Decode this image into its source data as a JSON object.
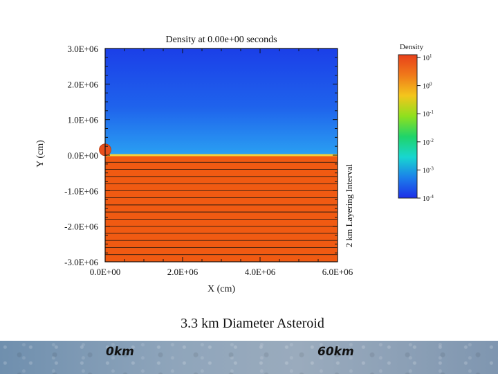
{
  "chart_data": {
    "type": "heatmap",
    "title": "Density at 0.00e+00 seconds",
    "xlabel": "X (cm)",
    "ylabel": "Y (cm)",
    "xlim": [
      0,
      6000000
    ],
    "ylim": [
      -3000000,
      3000000
    ],
    "x_ticks": [
      "0.0E+00",
      "2.0E+06",
      "4.0E+06",
      "6.0E+06"
    ],
    "x_tick_values": [
      0,
      2000000,
      4000000,
      6000000
    ],
    "y_ticks": [
      "3.0E+06",
      "2.0E+06",
      "1.0E+06",
      "0.0E+00",
      "-1.0E+06",
      "-2.0E+06",
      "-3.0E+06"
    ],
    "y_tick_values": [
      3000000,
      2000000,
      1000000,
      0,
      -1000000,
      -2000000,
      -3000000
    ],
    "surface_y": 0,
    "layer_interval_cm": 200000,
    "layer_label": "2 km Layering Interval",
    "asteroid": {
      "x": 0,
      "y": 150000,
      "diameter_cm": 330000
    },
    "colorbar": {
      "label": "Density",
      "scale": "log",
      "ticks": [
        {
          "base": "10",
          "exp": "1"
        },
        {
          "base": "10",
          "exp": "0"
        },
        {
          "base": "10",
          "exp": "-1"
        },
        {
          "base": "10",
          "exp": "-2"
        },
        {
          "base": "10",
          "exp": "-3"
        },
        {
          "base": "10",
          "exp": "-4"
        }
      ],
      "colors": [
        "#e8401a",
        "#f07a1a",
        "#f3c61c",
        "#8fe01e",
        "#1fd46a",
        "#18d6d0",
        "#1b7fea",
        "#1d2fe8"
      ]
    },
    "colors": {
      "ground": "#f05a12",
      "sky_top": "#1b3fe8",
      "sky_bottom": "#2aa0f2",
      "surface_line": "#f5d23a"
    }
  },
  "caption": "3.3 km Diameter Asteroid",
  "footer": {
    "left_label": "0km",
    "right_label": "60km"
  }
}
